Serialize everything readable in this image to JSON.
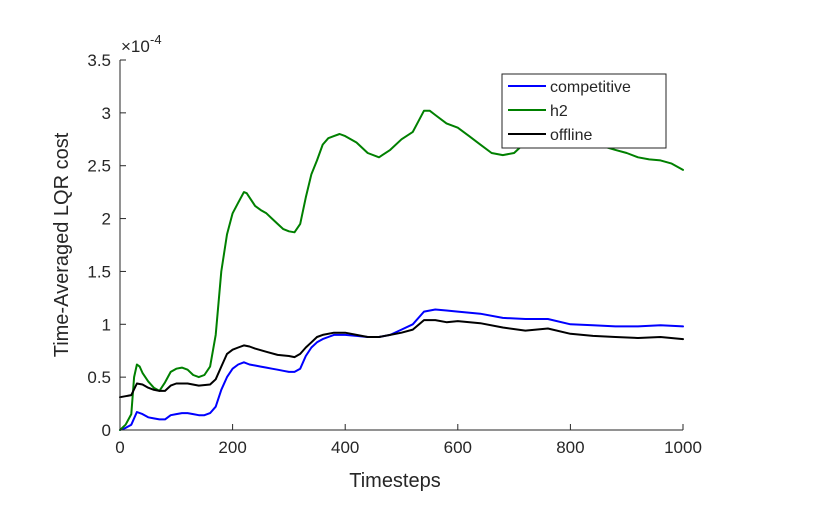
{
  "chart_data": {
    "type": "line",
    "xlabel": "Timesteps",
    "ylabel": "Time-Averaged LQR cost",
    "xlim": [
      0,
      1000
    ],
    "ylim": [
      0,
      3.5
    ],
    "y_exponent_label": "×10",
    "y_exponent": "-4",
    "x_ticks": [
      0,
      200,
      400,
      600,
      800,
      1000
    ],
    "y_ticks": [
      0,
      0.5,
      1,
      1.5,
      2,
      2.5,
      3,
      3.5
    ],
    "legend_position": "top-right",
    "grid": false,
    "series": [
      {
        "name": "competitive",
        "color": "#0000ff",
        "x": [
          0,
          10,
          20,
          30,
          40,
          50,
          60,
          70,
          80,
          90,
          100,
          110,
          120,
          130,
          140,
          150,
          160,
          170,
          180,
          190,
          200,
          210,
          220,
          230,
          240,
          250,
          260,
          270,
          280,
          290,
          300,
          310,
          320,
          330,
          340,
          350,
          360,
          370,
          380,
          390,
          400,
          420,
          440,
          460,
          480,
          500,
          520,
          540,
          560,
          580,
          600,
          640,
          680,
          720,
          760,
          800,
          840,
          880,
          920,
          960,
          1000
        ],
        "y": [
          0.0,
          0.02,
          0.05,
          0.17,
          0.15,
          0.12,
          0.11,
          0.1,
          0.1,
          0.14,
          0.15,
          0.16,
          0.16,
          0.15,
          0.14,
          0.14,
          0.16,
          0.22,
          0.38,
          0.5,
          0.58,
          0.62,
          0.64,
          0.62,
          0.61,
          0.6,
          0.59,
          0.58,
          0.57,
          0.56,
          0.55,
          0.55,
          0.58,
          0.7,
          0.78,
          0.83,
          0.86,
          0.88,
          0.9,
          0.9,
          0.9,
          0.89,
          0.88,
          0.88,
          0.9,
          0.95,
          1.0,
          1.12,
          1.14,
          1.13,
          1.12,
          1.1,
          1.06,
          1.05,
          1.05,
          1.0,
          0.99,
          0.98,
          0.98,
          0.99,
          0.98
        ]
      },
      {
        "name": "h2",
        "color": "#008000",
        "x": [
          0,
          10,
          20,
          25,
          30,
          35,
          40,
          50,
          60,
          70,
          80,
          90,
          100,
          110,
          120,
          130,
          140,
          150,
          160,
          170,
          180,
          190,
          200,
          210,
          220,
          225,
          230,
          240,
          250,
          260,
          270,
          280,
          290,
          300,
          310,
          320,
          330,
          340,
          350,
          360,
          370,
          380,
          390,
          400,
          420,
          440,
          460,
          480,
          500,
          520,
          530,
          540,
          550,
          560,
          580,
          600,
          620,
          640,
          660,
          680,
          700,
          720,
          740,
          760,
          780,
          800,
          820,
          840,
          860,
          880,
          900,
          920,
          940,
          960,
          980,
          1000
        ],
        "y": [
          0.0,
          0.05,
          0.15,
          0.5,
          0.62,
          0.6,
          0.54,
          0.46,
          0.4,
          0.37,
          0.45,
          0.55,
          0.58,
          0.59,
          0.57,
          0.52,
          0.5,
          0.52,
          0.6,
          0.9,
          1.5,
          1.85,
          2.05,
          2.15,
          2.25,
          2.24,
          2.2,
          2.12,
          2.08,
          2.05,
          2.0,
          1.95,
          1.9,
          1.88,
          1.87,
          1.95,
          2.2,
          2.42,
          2.55,
          2.7,
          2.76,
          2.78,
          2.8,
          2.78,
          2.72,
          2.62,
          2.58,
          2.65,
          2.75,
          2.82,
          2.92,
          3.02,
          3.02,
          2.98,
          2.9,
          2.86,
          2.78,
          2.7,
          2.62,
          2.6,
          2.62,
          2.72,
          2.8,
          2.82,
          2.82,
          2.78,
          2.74,
          2.72,
          2.68,
          2.65,
          2.62,
          2.58,
          2.56,
          2.55,
          2.52,
          2.46
        ]
      },
      {
        "name": "offline",
        "color": "#000000",
        "x": [
          0,
          10,
          20,
          30,
          40,
          50,
          60,
          70,
          80,
          90,
          100,
          120,
          140,
          160,
          170,
          180,
          190,
          200,
          210,
          220,
          230,
          240,
          260,
          280,
          300,
          310,
          320,
          330,
          340,
          350,
          360,
          380,
          400,
          420,
          440,
          460,
          480,
          500,
          520,
          540,
          560,
          580,
          600,
          640,
          680,
          720,
          760,
          800,
          840,
          880,
          920,
          960,
          1000
        ],
        "y": [
          0.31,
          0.32,
          0.33,
          0.44,
          0.43,
          0.4,
          0.38,
          0.37,
          0.37,
          0.42,
          0.44,
          0.44,
          0.42,
          0.43,
          0.48,
          0.6,
          0.72,
          0.76,
          0.78,
          0.8,
          0.79,
          0.77,
          0.74,
          0.71,
          0.7,
          0.69,
          0.72,
          0.78,
          0.83,
          0.88,
          0.9,
          0.92,
          0.92,
          0.9,
          0.88,
          0.88,
          0.9,
          0.92,
          0.95,
          1.04,
          1.04,
          1.02,
          1.03,
          1.01,
          0.97,
          0.94,
          0.96,
          0.91,
          0.89,
          0.88,
          0.87,
          0.88,
          0.86
        ]
      }
    ]
  }
}
